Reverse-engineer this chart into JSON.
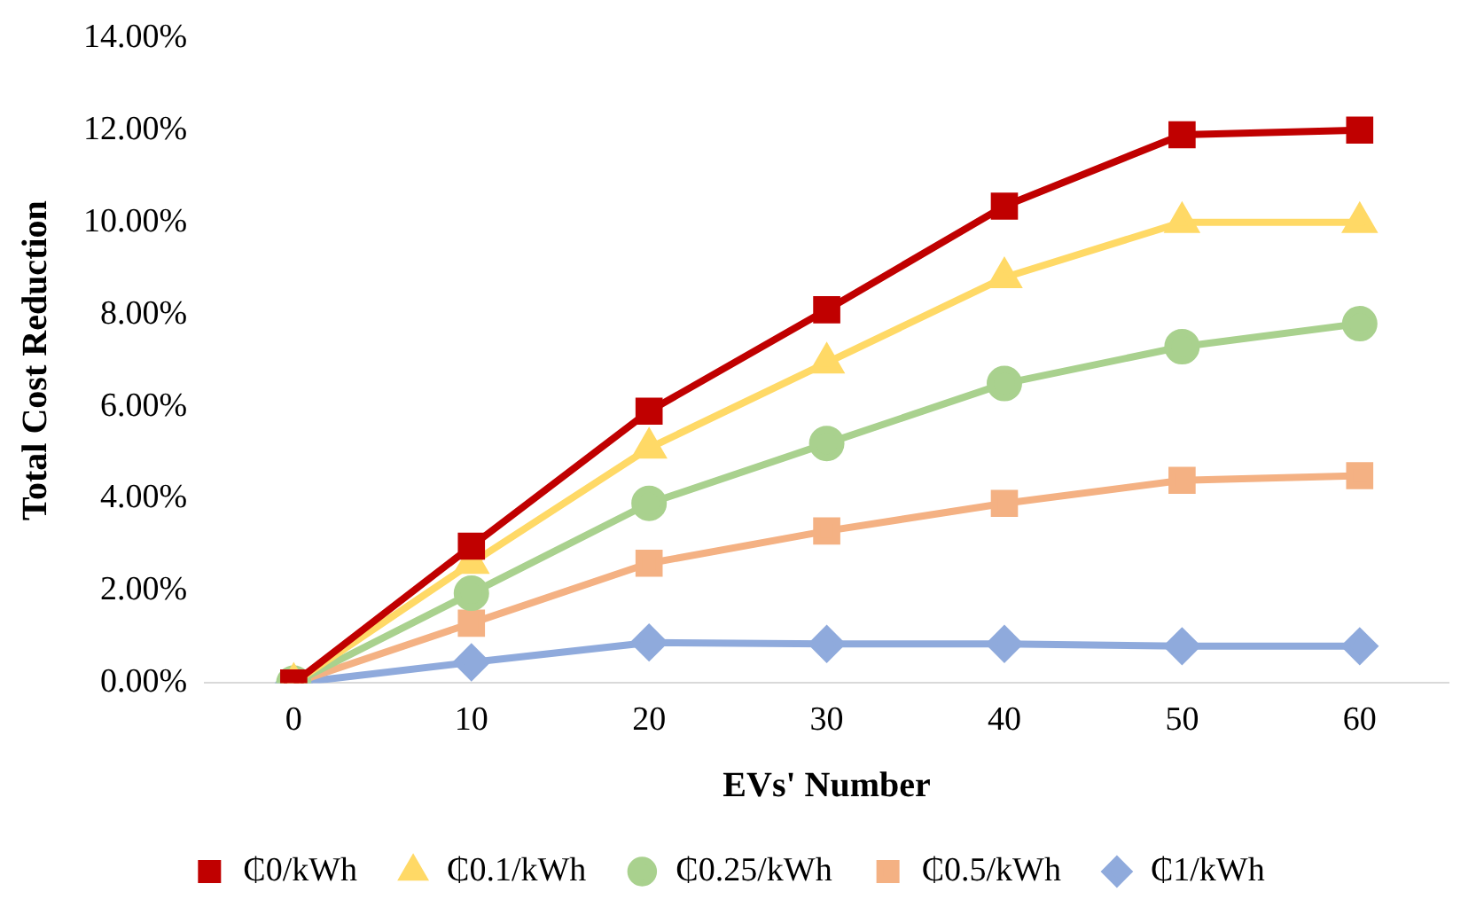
{
  "chart_data": {
    "type": "line",
    "xlabel": "EVs' Number",
    "ylabel": "Total Cost Reduction",
    "categories": [
      "0",
      "10",
      "20",
      "30",
      "40",
      "50",
      "60"
    ],
    "series": [
      {
        "name": "₵0/kWh",
        "color": "#c00000",
        "marker": "square",
        "values": [
          0,
          2.97,
          5.9,
          8.1,
          10.35,
          11.9,
          12.0
        ]
      },
      {
        "name": "₵0.1/kWh",
        "color": "#ffd966",
        "marker": "triangle",
        "values": [
          0,
          2.6,
          5.1,
          6.95,
          8.8,
          10.0,
          10.0
        ]
      },
      {
        "name": "₵0.25/kWh",
        "color": "#a9d18e",
        "marker": "circle",
        "values": [
          0,
          1.95,
          3.9,
          5.2,
          6.5,
          7.3,
          7.8
        ]
      },
      {
        "name": "₵0.5/kWh",
        "color": "#f4b183",
        "marker": "square",
        "values": [
          0,
          1.3,
          2.6,
          3.3,
          3.9,
          4.4,
          4.5
        ]
      },
      {
        "name": "₵1/kWh",
        "color": "#8faadc",
        "marker": "diamond",
        "values": [
          0,
          0.45,
          0.88,
          0.85,
          0.85,
          0.8,
          0.8
        ]
      }
    ],
    "ylim": [
      0,
      14
    ],
    "yticks": [
      {
        "value": 0,
        "label": "0.00%"
      },
      {
        "value": 2,
        "label": "2.00%"
      },
      {
        "value": 4,
        "label": "4.00%"
      },
      {
        "value": 6,
        "label": "6.00%"
      },
      {
        "value": 8,
        "label": "8.00%"
      },
      {
        "value": 10,
        "label": "10.00%"
      },
      {
        "value": 12,
        "label": "12.00%"
      },
      {
        "value": 14,
        "label": "14.00%"
      }
    ],
    "grid": false,
    "legend": "bottom",
    "line_style": "solid"
  }
}
